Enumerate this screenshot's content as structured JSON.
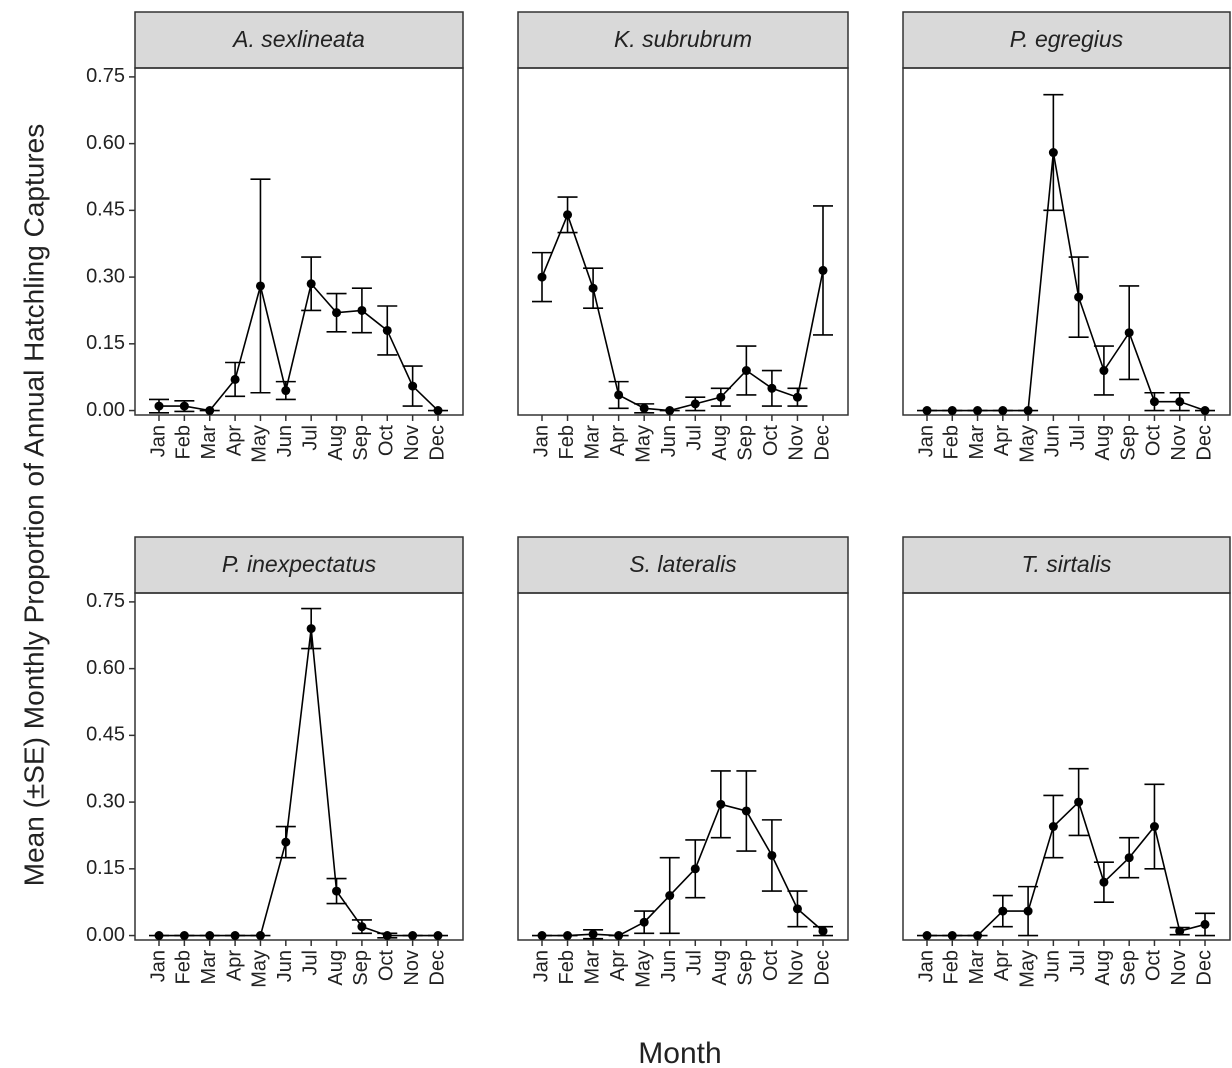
{
  "ylabel": "Mean (±SE) Monthly Proportion of Annual Hatchling Captures",
  "xlabel": "Month",
  "ylim": [
    -0.01,
    0.77
  ],
  "yticks": [
    {
      "value": 0,
      "label": "0.00"
    },
    {
      "value": 0.15,
      "label": "0.15"
    },
    {
      "value": 0.3,
      "label": "0.30"
    },
    {
      "value": 0.45,
      "label": "0.45"
    },
    {
      "value": 0.6,
      "label": "0.60"
    },
    {
      "value": 0.75,
      "label": "0.75"
    }
  ],
  "chart_data": [
    {
      "type": "line",
      "title": "A. sexlineata",
      "categories": [
        "Jan",
        "Feb",
        "Mar",
        "Apr",
        "May",
        "Jun",
        "Jul",
        "Aug",
        "Sep",
        "Oct",
        "Nov",
        "Dec"
      ],
      "series": [
        {
          "color": "#000000",
          "values": [
            0.01,
            0.01,
            0,
            0.07,
            0.28,
            0.045,
            0.285,
            0.22,
            0.225,
            0.18,
            0.055,
            0
          ],
          "errors": [
            0.015,
            0.012,
            0,
            0.038,
            0.24,
            0.02,
            0.06,
            0.043,
            0.05,
            0.055,
            0.045,
            0
          ]
        }
      ]
    },
    {
      "type": "line",
      "title": "K. subrubrum",
      "categories": [
        "Jan",
        "Feb",
        "Mar",
        "Apr",
        "May",
        "Jun",
        "Jul",
        "Aug",
        "Sep",
        "Oct",
        "Nov",
        "Dec"
      ],
      "series": [
        {
          "color": "#000000",
          "values": [
            0.3,
            0.44,
            0.275,
            0.035,
            0.005,
            0,
            0.015,
            0.03,
            0.09,
            0.05,
            0.03,
            0.315
          ],
          "errors": [
            0.055,
            0.04,
            0.045,
            0.03,
            0.01,
            0,
            0.015,
            0.02,
            0.055,
            0.04,
            0.02,
            0.145
          ]
        }
      ]
    },
    {
      "type": "line",
      "title": "P. egregius",
      "categories": [
        "Jan",
        "Feb",
        "Mar",
        "Apr",
        "May",
        "Jun",
        "Jul",
        "Aug",
        "Sep",
        "Oct",
        "Nov",
        "Dec"
      ],
      "series": [
        {
          "color": "#000000",
          "values": [
            0,
            0,
            0,
            0,
            0,
            0.58,
            0.255,
            0.09,
            0.175,
            0.02,
            0.02,
            0
          ],
          "errors": [
            0,
            0,
            0,
            0,
            0,
            0.13,
            0.09,
            0.055,
            0.105,
            0.02,
            0.02,
            0
          ]
        }
      ]
    },
    {
      "type": "line",
      "title": "P. inexpectatus",
      "categories": [
        "Jan",
        "Feb",
        "Mar",
        "Apr",
        "May",
        "Jun",
        "Jul",
        "Aug",
        "Sep",
        "Oct",
        "Nov",
        "Dec"
      ],
      "series": [
        {
          "color": "#000000",
          "values": [
            0,
            0,
            0,
            0,
            0,
            0.21,
            0.69,
            0.1,
            0.02,
            0,
            0,
            0
          ],
          "errors": [
            0,
            0,
            0,
            0,
            0,
            0.035,
            0.045,
            0.028,
            0.015,
            0.005,
            0,
            0
          ]
        }
      ]
    },
    {
      "type": "line",
      "title": "S. lateralis",
      "categories": [
        "Jan",
        "Feb",
        "Mar",
        "Apr",
        "May",
        "Jun",
        "Jul",
        "Aug",
        "Sep",
        "Oct",
        "Nov",
        "Dec"
      ],
      "series": [
        {
          "color": "#000000",
          "values": [
            0,
            0,
            0.003,
            0,
            0.03,
            0.09,
            0.15,
            0.295,
            0.28,
            0.18,
            0.06,
            0.01
          ],
          "errors": [
            0,
            0,
            0.01,
            0,
            0.025,
            0.085,
            0.065,
            0.075,
            0.09,
            0.08,
            0.04,
            0.01
          ]
        }
      ]
    },
    {
      "type": "line",
      "title": "T. sirtalis",
      "categories": [
        "Jan",
        "Feb",
        "Mar",
        "Apr",
        "May",
        "Jun",
        "Jul",
        "Aug",
        "Sep",
        "Oct",
        "Nov",
        "Dec"
      ],
      "series": [
        {
          "color": "#000000",
          "values": [
            0,
            0,
            0,
            0.055,
            0.055,
            0.245,
            0.3,
            0.12,
            0.175,
            0.245,
            0.01,
            0.025
          ],
          "errors": [
            0,
            0,
            0,
            0.035,
            0.055,
            0.07,
            0.075,
            0.045,
            0.045,
            0.095,
            0.008,
            0.025
          ]
        }
      ]
    }
  ]
}
